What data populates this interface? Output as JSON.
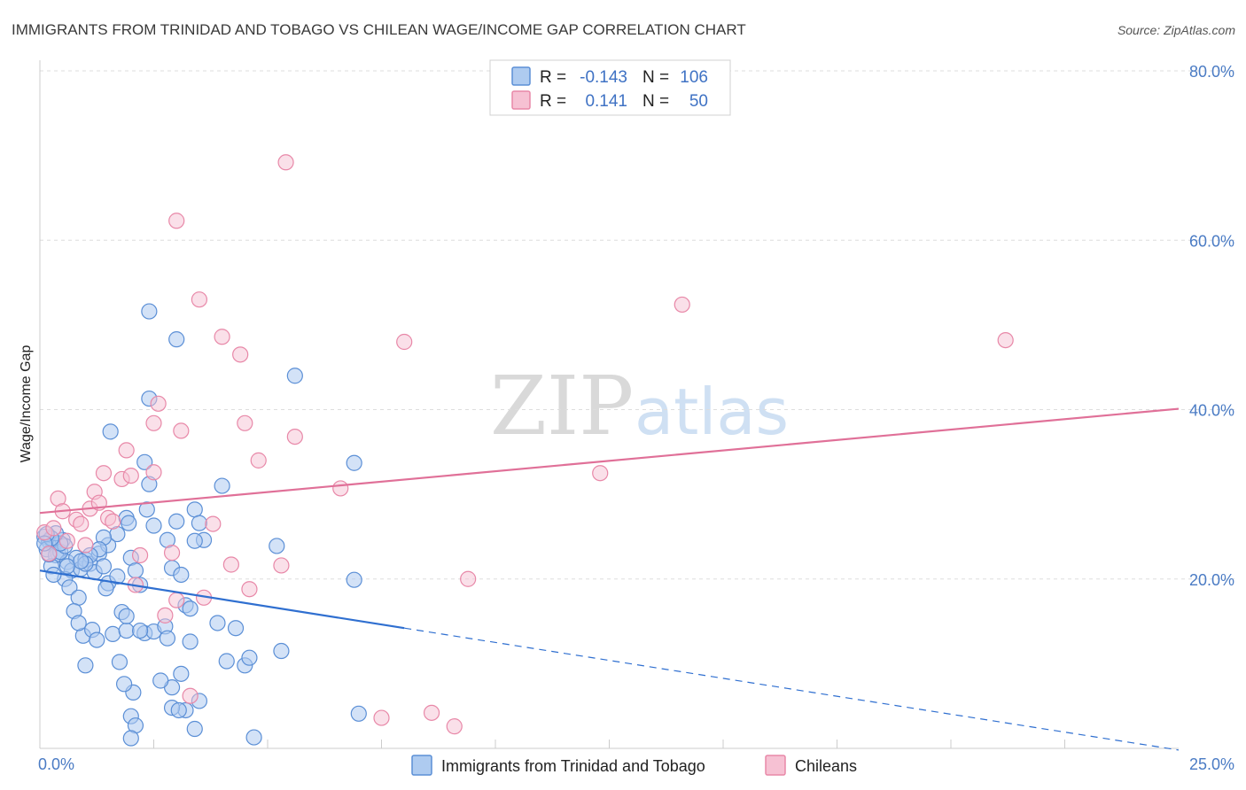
{
  "header": {
    "title": "IMMIGRANTS FROM TRINIDAD AND TOBAGO VS CHILEAN WAGE/INCOME GAP CORRELATION CHART",
    "source": "Source: ZipAtlas.com"
  },
  "watermark": {
    "zip": "ZIP",
    "atlas": "atlas"
  },
  "legend": {
    "rows": [
      {
        "r_label": "R =",
        "r_value": "-0.143",
        "n_label": "N =",
        "n_value": "106"
      },
      {
        "r_label": "R =",
        "r_value": "0.141",
        "n_label": "N =",
        "n_value": "50"
      }
    ]
  },
  "bottom_legend": {
    "items": [
      "Immigrants from Trinidad and Tobago",
      "Chileans"
    ]
  },
  "colors": {
    "blue_fill": "#aecbf0",
    "blue_stroke": "#5b8fd6",
    "blue_line": "#2f6fd0",
    "pink_fill": "#f6c1d3",
    "pink_stroke": "#e888a8",
    "pink_line": "#e07098",
    "grid": "#dddddd"
  },
  "chart_data": {
    "type": "scatter",
    "title": "IMMIGRANTS FROM TRINIDAD AND TOBAGO VS CHILEAN WAGE/INCOME GAP CORRELATION CHART",
    "xlabel": "",
    "ylabel": "Wage/Income Gap",
    "xlim": [
      0,
      25
    ],
    "ylim": [
      0,
      80
    ],
    "x_ticks_labeled": [
      "0.0%",
      "25.0%"
    ],
    "y_ticks": [
      20,
      40,
      60,
      80
    ],
    "y_tick_labels": [
      "20.0%",
      "40.0%",
      "60.0%",
      "80.0%"
    ],
    "grid": true,
    "legend_placement": "top-center",
    "series": [
      {
        "name": "Immigrants from Trinidad and Tobago",
        "color": "#5b8fd6",
        "R": -0.143,
        "N": 106,
        "trend": {
          "x": [
            0,
            8
          ],
          "y": [
            21.0,
            14.2
          ],
          "dashed_extension": {
            "x": [
              8,
              25
            ],
            "y": [
              14.2,
              -0.2
            ]
          }
        },
        "points": [
          [
            0.1,
            25.0
          ],
          [
            0.2,
            24.5
          ],
          [
            0.3,
            24.0
          ],
          [
            0.15,
            23.5
          ],
          [
            0.4,
            23.0
          ],
          [
            0.35,
            22.8
          ],
          [
            0.5,
            24.6
          ],
          [
            0.25,
            21.5
          ],
          [
            0.6,
            22.0
          ],
          [
            0.45,
            23.2
          ],
          [
            0.7,
            21.0
          ],
          [
            0.55,
            20.0
          ],
          [
            0.8,
            22.5
          ],
          [
            0.9,
            21.2
          ],
          [
            0.65,
            19.0
          ],
          [
            1.0,
            22.3
          ],
          [
            1.1,
            21.8
          ],
          [
            0.85,
            17.8
          ],
          [
            1.2,
            20.8
          ],
          [
            1.3,
            23.0
          ],
          [
            0.75,
            16.2
          ],
          [
            1.4,
            21.5
          ],
          [
            1.5,
            19.5
          ],
          [
            0.95,
            13.3
          ],
          [
            0.85,
            14.8
          ],
          [
            1.15,
            14.0
          ],
          [
            1.25,
            12.8
          ],
          [
            1.6,
            13.5
          ],
          [
            1.7,
            20.3
          ],
          [
            1.5,
            24.0
          ],
          [
            1.8,
            16.1
          ],
          [
            1.9,
            13.9
          ],
          [
            2.0,
            22.5
          ],
          [
            2.1,
            21.0
          ],
          [
            2.2,
            19.3
          ],
          [
            1.75,
            10.2
          ],
          [
            1.0,
            9.8
          ],
          [
            2.3,
            13.6
          ],
          [
            2.5,
            13.8
          ],
          [
            1.55,
            37.4
          ],
          [
            1.9,
            27.2
          ],
          [
            1.95,
            26.6
          ],
          [
            2.4,
            41.3
          ],
          [
            2.8,
            24.6
          ],
          [
            2.9,
            21.3
          ],
          [
            3.0,
            26.8
          ],
          [
            3.1,
            20.5
          ],
          [
            2.75,
            14.4
          ],
          [
            2.8,
            13.0
          ],
          [
            2.9,
            7.2
          ],
          [
            3.2,
            16.9
          ],
          [
            3.3,
            16.5
          ],
          [
            3.4,
            28.2
          ],
          [
            3.5,
            26.6
          ],
          [
            3.6,
            24.6
          ],
          [
            3.4,
            24.5
          ],
          [
            3.3,
            12.6
          ],
          [
            3.5,
            5.6
          ],
          [
            3.2,
            4.5
          ],
          [
            3.1,
            8.8
          ],
          [
            2.65,
            8.0
          ],
          [
            2.2,
            13.9
          ],
          [
            2.0,
            3.8
          ],
          [
            2.05,
            6.6
          ],
          [
            2.1,
            2.7
          ],
          [
            2.0,
            1.2
          ],
          [
            1.85,
            7.6
          ],
          [
            2.9,
            4.8
          ],
          [
            3.05,
            4.5
          ],
          [
            3.4,
            2.3
          ],
          [
            4.0,
            31.0
          ],
          [
            3.9,
            14.8
          ],
          [
            4.1,
            10.3
          ],
          [
            4.3,
            14.2
          ],
          [
            4.5,
            9.8
          ],
          [
            4.6,
            10.7
          ],
          [
            5.3,
            11.5
          ],
          [
            4.7,
            1.3
          ],
          [
            5.2,
            23.9
          ],
          [
            2.3,
            33.8
          ],
          [
            2.4,
            31.2
          ],
          [
            2.4,
            51.6
          ],
          [
            3.0,
            48.3
          ],
          [
            5.6,
            44.0
          ],
          [
            6.9,
            33.7
          ],
          [
            6.9,
            19.9
          ],
          [
            7.0,
            4.1
          ],
          [
            2.35,
            28.2
          ],
          [
            2.5,
            26.3
          ],
          [
            1.7,
            25.3
          ],
          [
            1.4,
            24.9
          ],
          [
            1.3,
            23.5
          ],
          [
            1.1,
            22.8
          ],
          [
            1.0,
            21.8
          ],
          [
            0.9,
            22.1
          ],
          [
            0.6,
            21.5
          ],
          [
            0.55,
            23.9
          ],
          [
            0.45,
            24.2
          ],
          [
            0.35,
            25.4
          ],
          [
            0.25,
            24.8
          ],
          [
            0.2,
            22.9
          ],
          [
            0.15,
            25.3
          ],
          [
            0.1,
            24.2
          ],
          [
            0.3,
            20.5
          ],
          [
            1.45,
            18.9
          ],
          [
            1.9,
            15.6
          ]
        ]
      },
      {
        "name": "Chileans",
        "color": "#e888a8",
        "R": 0.141,
        "N": 50,
        "trend": {
          "x": [
            0,
            25
          ],
          "y": [
            27.8,
            40.1
          ]
        },
        "points": [
          [
            0.1,
            25.5
          ],
          [
            0.2,
            23.0
          ],
          [
            0.3,
            26.0
          ],
          [
            0.4,
            29.5
          ],
          [
            0.5,
            28.0
          ],
          [
            0.6,
            24.5
          ],
          [
            0.8,
            27.0
          ],
          [
            0.9,
            26.5
          ],
          [
            1.0,
            24.0
          ],
          [
            1.1,
            28.3
          ],
          [
            1.2,
            30.3
          ],
          [
            1.3,
            29.0
          ],
          [
            1.4,
            32.5
          ],
          [
            1.5,
            27.2
          ],
          [
            1.6,
            26.8
          ],
          [
            1.8,
            31.8
          ],
          [
            1.9,
            35.2
          ],
          [
            2.0,
            32.2
          ],
          [
            2.1,
            19.3
          ],
          [
            2.2,
            22.8
          ],
          [
            2.5,
            32.6
          ],
          [
            2.5,
            38.4
          ],
          [
            2.6,
            40.7
          ],
          [
            2.75,
            15.7
          ],
          [
            2.9,
            23.1
          ],
          [
            3.0,
            17.5
          ],
          [
            3.1,
            37.5
          ],
          [
            3.3,
            6.2
          ],
          [
            3.5,
            53.0
          ],
          [
            3.6,
            17.8
          ],
          [
            3.8,
            26.5
          ],
          [
            4.0,
            48.6
          ],
          [
            4.2,
            21.7
          ],
          [
            4.4,
            46.5
          ],
          [
            4.5,
            38.4
          ],
          [
            4.6,
            18.8
          ],
          [
            4.8,
            34.0
          ],
          [
            5.3,
            21.6
          ],
          [
            5.4,
            69.2
          ],
          [
            5.6,
            36.8
          ],
          [
            3.0,
            62.3
          ],
          [
            6.6,
            30.7
          ],
          [
            7.5,
            3.6
          ],
          [
            8.0,
            48.0
          ],
          [
            8.6,
            4.2
          ],
          [
            9.1,
            2.6
          ],
          [
            9.4,
            20.0
          ],
          [
            12.3,
            32.5
          ],
          [
            14.1,
            52.4
          ],
          [
            21.2,
            48.2
          ]
        ]
      }
    ]
  }
}
